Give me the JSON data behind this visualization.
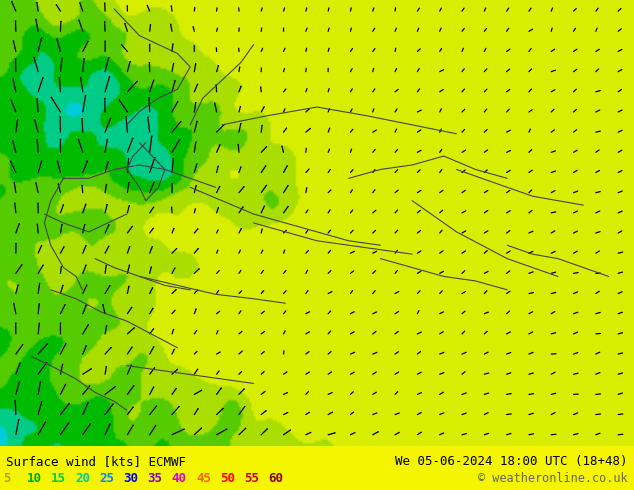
{
  "title_left": "Surface wind [kts] ECMWF",
  "title_right": "We 05-06-2024 18:00 UTC (18+48)",
  "copyright": "© weatheronline.co.uk",
  "colorbar_values": [
    5,
    10,
    15,
    20,
    25,
    30,
    35,
    40,
    45,
    50,
    55,
    60
  ],
  "legend_colors": [
    "#aaaa00",
    "#00aa00",
    "#00cc44",
    "#00ccaa",
    "#0088ff",
    "#0000ff",
    "#8800cc",
    "#dd00dd",
    "#ff6600",
    "#ff0000",
    "#cc0033",
    "#880000"
  ],
  "cmap_levels": [
    0,
    5,
    10,
    15,
    20,
    25,
    30,
    35,
    40,
    45,
    50,
    55,
    60,
    70
  ],
  "cmap_colors": [
    "#f5f500",
    "#d4f000",
    "#aaee00",
    "#66dd00",
    "#00cc00",
    "#00dd88",
    "#00dddd",
    "#00aaff",
    "#0055ff",
    "#0000cc",
    "#6600cc",
    "#cc00cc",
    "#cc0000"
  ],
  "bg_yellow": "#f5f500",
  "figsize": [
    6.34,
    4.9
  ],
  "dpi": 100
}
